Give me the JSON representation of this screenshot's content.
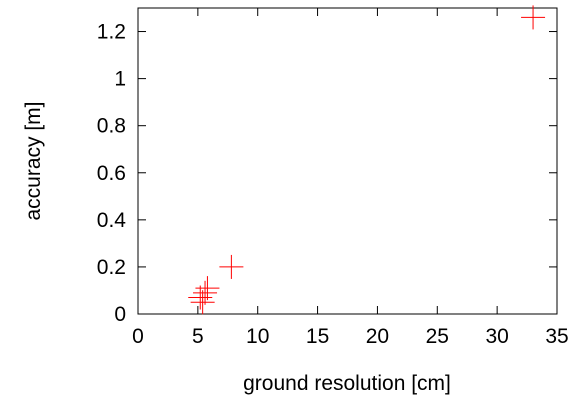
{
  "chart_data": {
    "type": "scatter",
    "xlabel": "ground resolution [cm]",
    "ylabel": "accuracy [m]",
    "xlim": [
      0,
      35
    ],
    "ylim": [
      0,
      1.3
    ],
    "x_ticks": [
      "0",
      "5",
      "10",
      "15",
      "20",
      "25",
      "30",
      "35"
    ],
    "y_ticks": [
      "0",
      "0.2",
      "0.4",
      "0.6",
      "0.8",
      "1",
      "1.2"
    ],
    "grid": false,
    "marker": "plus",
    "color": "#ff0000",
    "points": [
      {
        "x": 5.2,
        "y": 0.07
      },
      {
        "x": 5.4,
        "y": 0.05
      },
      {
        "x": 5.6,
        "y": 0.09
      },
      {
        "x": 5.8,
        "y": 0.11
      },
      {
        "x": 7.8,
        "y": 0.2
      },
      {
        "x": 33.0,
        "y": 1.26
      }
    ]
  }
}
